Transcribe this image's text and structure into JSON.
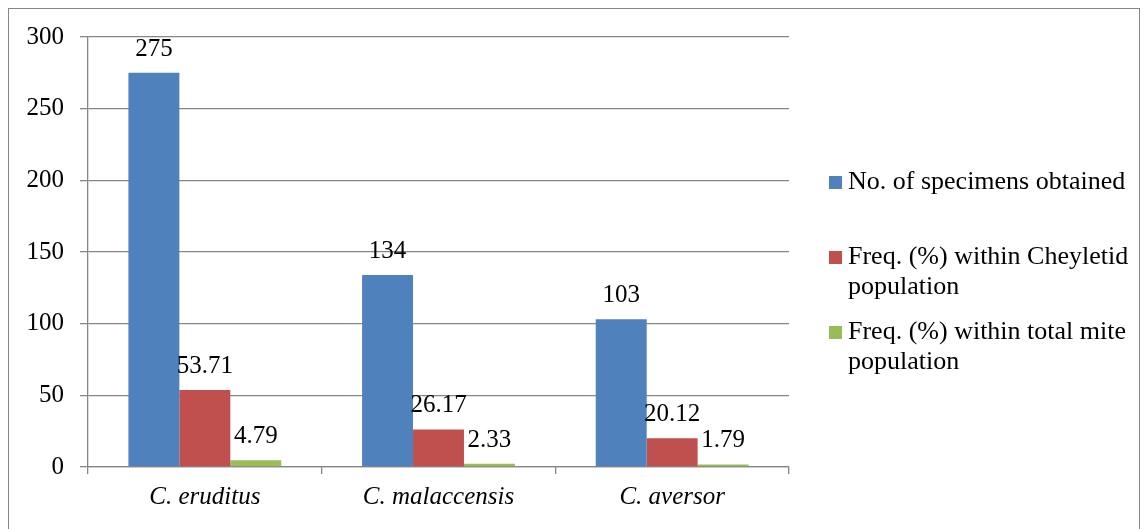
{
  "chart_data": {
    "type": "bar",
    "categories": [
      "C. eruditus",
      "C. malaccensis",
      "C. aversor"
    ],
    "series": [
      {
        "name": "No. of specimens obtained",
        "color": "#4f81bd",
        "values": [
          275,
          134,
          103
        ]
      },
      {
        "name": "Freq. (%) within Cheyletid population",
        "color": "#c0504d",
        "values": [
          53.71,
          26.17,
          20.12
        ]
      },
      {
        "name": "Freq. (%) within total mite population",
        "color": "#9bbb59",
        "values": [
          4.79,
          2.33,
          1.79
        ]
      }
    ],
    "ylim": [
      0,
      300
    ],
    "yticks": [
      0,
      50,
      100,
      150,
      200,
      250,
      300
    ],
    "grid": "y",
    "legend": "right",
    "data_labels": true
  }
}
